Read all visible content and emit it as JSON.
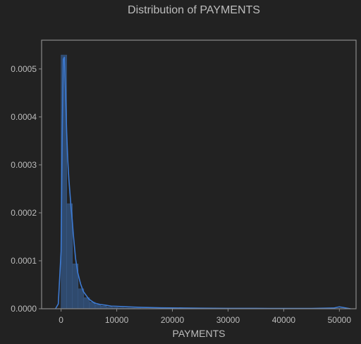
{
  "chart_data": {
    "type": "histogram",
    "title": "Distribution of PAYMENTS",
    "xlabel": "PAYMENTS",
    "ylabel": "",
    "xlim": [
      -3500,
      53000
    ],
    "ylim": [
      0,
      0.00056
    ],
    "grid": false,
    "x_ticks": [
      {
        "value": 0,
        "label": "0"
      },
      {
        "value": 10000,
        "label": "10000"
      },
      {
        "value": 20000,
        "label": "20000"
      },
      {
        "value": 30000,
        "label": "30000"
      },
      {
        "value": 40000,
        "label": "40000"
      },
      {
        "value": 50000,
        "label": "50000"
      }
    ],
    "y_ticks": [
      {
        "value": 0,
        "label": "0.0000"
      },
      {
        "value": 0.0001,
        "label": "0.0001"
      },
      {
        "value": 0.0002,
        "label": "0.0002"
      },
      {
        "value": 0.0003,
        "label": "0.0003"
      },
      {
        "value": 0.0004,
        "label": "0.0004"
      },
      {
        "value": 0.0005,
        "label": "0.0005"
      }
    ],
    "bins": {
      "start": 0,
      "width": 1020,
      "values": [
        0.000529,
        0.000219,
        9.35e-05,
        4.15e-05,
        2.3e-05,
        1.35e-05,
        8.5e-06,
        5.5e-06,
        3.5e-06,
        2.4e-06,
        1.6e-06,
        1.2e-06,
        9e-07,
        7e-07,
        5e-07,
        4e-07,
        4e-07,
        3e-07,
        3e-07,
        2e-07,
        2e-07,
        2e-07,
        1e-07,
        1e-07,
        1e-07,
        1e-07,
        1e-07,
        1e-07,
        1e-07,
        1e-07,
        1e-07,
        1e-07,
        1e-07,
        1e-07,
        1e-07,
        1e-07,
        1e-07,
        1e-07,
        1e-07,
        1e-07,
        1e-07,
        1e-07,
        1e-07,
        1e-07,
        1e-07,
        1e-07,
        1e-07,
        1e-07,
        1e-07,
        1e-07
      ]
    },
    "kde": {
      "x": [
        -1000,
        -500,
        0,
        200,
        400,
        600,
        800,
        1000,
        1200,
        1400,
        1600,
        1800,
        2000,
        2200,
        2400,
        2600,
        2800,
        3000,
        3500,
        4000,
        4500,
        5000,
        5500,
        6000,
        7000,
        8000,
        9000,
        10000,
        11000,
        12000,
        14000,
        16000,
        18000,
        20000,
        22000,
        25000,
        30000,
        35000,
        40000,
        45000,
        49000,
        50000,
        51000,
        52000
      ],
      "y": [
        0,
        1e-05,
        0.00012,
        0.00036,
        0.00052,
        0.000525,
        0.00045,
        0.00037,
        0.00031,
        0.00027,
        0.00024,
        0.00021,
        0.000185,
        0.000155,
        0.00013,
        0.000105,
        9e-05,
        7.5e-05,
        5.2e-05,
        3.6e-05,
        2.8e-05,
        2e-05,
        1.6e-05,
        1.2e-05,
        9e-06,
        7.5e-06,
        5.5e-06,
        5e-06,
        4.5e-06,
        4e-06,
        3e-06,
        2.5e-06,
        2e-06,
        1.8e-06,
        1.6e-06,
        1.2e-06,
        9e-07,
        8e-07,
        7e-07,
        7e-07,
        1.5e-06,
        4e-06,
        2e-06,
        0
      ]
    },
    "colors": {
      "background": "#222222",
      "frame": "#8a8a8a",
      "text": "#bdbdbd",
      "bar_fill": "#2f4a6e",
      "bar_edge": "#3a5a86",
      "kde_line": "#3d7bd4"
    }
  }
}
